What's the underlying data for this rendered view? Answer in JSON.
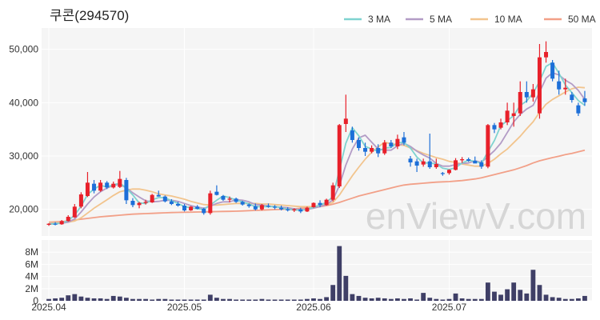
{
  "title": "쿠콘(294570)",
  "watermark": "enViewV.com",
  "chart_data": {
    "type": "candlestick",
    "price_axis": {
      "ylim": [
        15000,
        54000
      ],
      "ticks": [
        20000,
        30000,
        40000,
        50000
      ],
      "tick_labels": [
        "20,000",
        "30,000",
        "40,000",
        "50,000"
      ]
    },
    "volume_axis": {
      "ylim": [
        0,
        10
      ],
      "unit": "M",
      "ticks": [
        0,
        2,
        4,
        6,
        8
      ],
      "tick_labels": [
        "0",
        "2M",
        "4M",
        "6M",
        "8M"
      ]
    },
    "x_tick_labels": [
      {
        "index": 0,
        "label": "2025.04"
      },
      {
        "index": 21,
        "label": "2025.05"
      },
      {
        "index": 41,
        "label": "2025.06"
      },
      {
        "index": 62,
        "label": "2025.07"
      }
    ],
    "legend": [
      {
        "label": "3 MA",
        "color": "#7fd3d0"
      },
      {
        "label": "5 MA",
        "color": "#b39cc6"
      },
      {
        "label": "10 MA",
        "color": "#f2c48d"
      },
      {
        "label": "50 MA",
        "color": "#f2a088"
      }
    ],
    "colors": {
      "up": "#e8202a",
      "down": "#1d6fd8",
      "volume": "#3f3f66",
      "grid": "#ffffff",
      "plot_bg": "#f5f5f5"
    },
    "candles": [
      [
        17100,
        17400,
        16900,
        17300
      ],
      [
        17300,
        17600,
        17000,
        17200
      ],
      [
        17200,
        18000,
        17100,
        17800
      ],
      [
        17800,
        18900,
        17700,
        18600
      ],
      [
        18500,
        21000,
        18400,
        20500
      ],
      [
        20500,
        23200,
        20200,
        22800
      ],
      [
        22500,
        27000,
        22300,
        25000
      ],
      [
        24800,
        25500,
        23000,
        23500
      ],
      [
        23500,
        25500,
        23300,
        25000
      ],
      [
        25000,
        25300,
        23800,
        24100
      ],
      [
        24100,
        25200,
        23900,
        24800
      ],
      [
        24200,
        27200,
        24000,
        25700
      ],
      [
        25500,
        25900,
        21000,
        21700
      ],
      [
        21600,
        22100,
        20400,
        20800
      ],
      [
        20800,
        21400,
        20200,
        21200
      ],
      [
        21200,
        21800,
        20900,
        21400
      ],
      [
        21300,
        22900,
        21200,
        22700
      ],
      [
        22700,
        23500,
        22400,
        22400
      ],
      [
        22400,
        22600,
        21300,
        21500
      ],
      [
        21500,
        21900,
        20800,
        21000
      ],
      [
        21000,
        21400,
        20500,
        20700
      ],
      [
        20700,
        21000,
        19600,
        19800
      ],
      [
        19800,
        20600,
        19700,
        20500
      ],
      [
        20500,
        20800,
        20000,
        20100
      ],
      [
        20100,
        20300,
        19000,
        19300
      ],
      [
        19300,
        23500,
        19000,
        23000
      ],
      [
        23300,
        24500,
        22600,
        22700
      ],
      [
        22500,
        22700,
        21600,
        21800
      ],
      [
        21800,
        22400,
        21300,
        22000
      ],
      [
        22000,
        22200,
        21200,
        21400
      ],
      [
        21400,
        21600,
        20700,
        20900
      ],
      [
        20900,
        21100,
        20300,
        20600
      ],
      [
        20600,
        21100,
        19800,
        20000
      ],
      [
        20000,
        21000,
        19800,
        20800
      ],
      [
        20700,
        21100,
        20300,
        20500
      ],
      [
        20500,
        20800,
        20000,
        20300
      ],
      [
        20300,
        20700,
        19800,
        20000
      ],
      [
        20000,
        20400,
        19600,
        19800
      ],
      [
        19800,
        20200,
        19500,
        20000
      ],
      [
        20000,
        20300,
        19300,
        19600
      ],
      [
        19600,
        20500,
        19500,
        20300
      ],
      [
        20400,
        21300,
        20300,
        21200
      ],
      [
        21200,
        21700,
        20400,
        20800
      ],
      [
        20800,
        22000,
        20700,
        21800
      ],
      [
        21800,
        25000,
        21500,
        24500
      ],
      [
        24300,
        36000,
        24000,
        35800
      ],
      [
        36000,
        41500,
        34500,
        37000
      ],
      [
        34800,
        35500,
        32500,
        33000
      ],
      [
        33000,
        33500,
        31000,
        31500
      ],
      [
        31500,
        32500,
        30000,
        30800
      ],
      [
        30800,
        32000,
        30500,
        31500
      ],
      [
        31500,
        32200,
        29800,
        30500
      ],
      [
        30500,
        33000,
        30200,
        32500
      ],
      [
        32500,
        33000,
        31500,
        31800
      ],
      [
        31800,
        34000,
        31300,
        33200
      ],
      [
        33500,
        34500,
        32000,
        32500
      ],
      [
        29500,
        30000,
        28000,
        28800
      ],
      [
        29000,
        29500,
        27000,
        28200
      ],
      [
        28400,
        29500,
        28000,
        29000
      ],
      [
        29000,
        34200,
        27600,
        27900
      ],
      [
        27900,
        29500,
        27600,
        28500
      ],
      [
        26800,
        27000,
        26300,
        26700
      ],
      [
        26800,
        27500,
        26500,
        27400
      ],
      [
        27400,
        29600,
        27300,
        29200
      ],
      [
        29200,
        29800,
        28700,
        29400
      ],
      [
        29400,
        29700,
        28900,
        29100
      ],
      [
        29100,
        29900,
        28800,
        28600
      ],
      [
        28800,
        29200,
        27600,
        28000
      ],
      [
        28000,
        36000,
        27700,
        35800
      ],
      [
        35800,
        36200,
        34300,
        35000
      ],
      [
        35300,
        37000,
        35000,
        36300
      ],
      [
        36300,
        40000,
        35800,
        38500
      ],
      [
        37500,
        40000,
        35500,
        38000
      ],
      [
        38000,
        44000,
        37500,
        42000
      ],
      [
        42000,
        44000,
        40000,
        41000
      ],
      [
        41000,
        43500,
        40200,
        42500
      ],
      [
        38000,
        51000,
        37000,
        48500
      ],
      [
        48500,
        51500,
        47500,
        49500
      ],
      [
        47500,
        48000,
        44000,
        44500
      ],
      [
        44000,
        46000,
        41500,
        42500
      ],
      [
        42500,
        44500,
        41500,
        42800
      ],
      [
        41500,
        42000,
        40000,
        40500
      ],
      [
        39500,
        40000,
        37500,
        38000
      ],
      [
        40800,
        42200,
        39400,
        40100
      ]
    ],
    "ma3": [
      17200,
      17300,
      17400,
      17900,
      18900,
      20600,
      22800,
      23800,
      24500,
      24200,
      24600,
      24900,
      24000,
      22700,
      21200,
      21100,
      21800,
      22200,
      22200,
      21600,
      21100,
      20500,
      20300,
      20100,
      20000,
      20800,
      21700,
      22500,
      22200,
      21700,
      21400,
      21000,
      20500,
      20500,
      20500,
      20500,
      20300,
      20000,
      19900,
      19800,
      20000,
      20400,
      20800,
      21300,
      22400,
      27400,
      32400,
      35300,
      33800,
      31800,
      31300,
      30900,
      31500,
      31600,
      32500,
      32500,
      31500,
      29800,
      28700,
      28700,
      28500,
      27700,
      27500,
      27800,
      28700,
      29200,
      29000,
      28600,
      30800,
      32900,
      35700,
      36600,
      37600,
      39500,
      40300,
      41800,
      44000,
      46800,
      47500,
      45500,
      43300,
      41900,
      40400,
      39500
    ],
    "ma5": [
      17300,
      17350,
      17400,
      17600,
      18200,
      19500,
      21000,
      22300,
      23300,
      24000,
      24500,
      24700,
      24000,
      23100,
      22300,
      21600,
      21400,
      21500,
      21700,
      21700,
      21500,
      21100,
      20700,
      20400,
      20200,
      20600,
      21100,
      21400,
      21400,
      21800,
      21700,
      21400,
      20900,
      20800,
      20600,
      20500,
      20400,
      20300,
      20100,
      19900,
      20000,
      20200,
      20500,
      20900,
      21800,
      24500,
      28300,
      31300,
      33400,
      33900,
      32600,
      31300,
      31100,
      31100,
      31900,
      32400,
      31800,
      30900,
      30200,
      29600,
      28600,
      28100,
      28100,
      28400,
      28600,
      28700,
      29100,
      28800,
      29900,
      31000,
      32400,
      34400,
      36400,
      37800,
      38800,
      39500,
      42000,
      44600,
      45600,
      45200,
      44200,
      43500,
      42300,
      40600
    ],
    "ma10": [
      17500,
      17500,
      17500,
      17600,
      17800,
      18400,
      19300,
      20200,
      21000,
      21800,
      22600,
      23300,
      23600,
      23800,
      23800,
      23600,
      23300,
      22900,
      22700,
      22500,
      22200,
      21900,
      21500,
      21200,
      20900,
      20800,
      20800,
      20900,
      21000,
      21100,
      21100,
      21100,
      21100,
      21000,
      21000,
      20900,
      20800,
      20700,
      20600,
      20500,
      20500,
      20500,
      20700,
      20900,
      21300,
      22700,
      24500,
      26300,
      27900,
      29400,
      30700,
      31700,
      32600,
      32300,
      32100,
      32000,
      31500,
      31000,
      30500,
      30100,
      29700,
      29400,
      29000,
      28800,
      28500,
      28300,
      28100,
      28100,
      28600,
      29400,
      30400,
      31300,
      32500,
      33700,
      35100,
      36400,
      38200,
      39700,
      40600,
      41300,
      42000,
      42600,
      42900,
      42800
    ],
    "ma50": [
      17600,
      17650,
      17700,
      17800,
      18000,
      18150,
      18300,
      18450,
      18600,
      18700,
      18800,
      18900,
      19000,
      19100,
      19150,
      19200,
      19250,
      19300,
      19350,
      19400,
      19420,
      19450,
      19470,
      19500,
      19520,
      19550,
      19570,
      19600,
      19620,
      19650,
      19700,
      19750,
      19800,
      19850,
      19900,
      19950,
      20000,
      20050,
      20100,
      20200,
      20300,
      20400,
      20500,
      20700,
      20950,
      21300,
      21700,
      22100,
      22500,
      22800,
      23100,
      23400,
      23700,
      24000,
      24300,
      24550,
      24700,
      24800,
      24900,
      25000,
      25100,
      25150,
      25200,
      25300,
      25400,
      25550,
      25700,
      25900,
      26200,
      26500,
      26800,
      27100,
      27400,
      27800,
      28200,
      28700,
      29100,
      29400,
      29700,
      29950,
      30250,
      30500,
      30800,
      31100
    ],
    "volumes_m": [
      0.3,
      0.4,
      0.5,
      0.9,
      1.1,
      0.7,
      0.5,
      0.4,
      0.4,
      0.3,
      0.8,
      0.7,
      0.5,
      0.3,
      0.3,
      0.3,
      0.2,
      0.3,
      0.3,
      0.2,
      0.2,
      0.2,
      0.2,
      0.2,
      0.2,
      1.0,
      0.5,
      0.3,
      0.3,
      0.2,
      0.2,
      0.2,
      0.2,
      0.3,
      0.2,
      0.2,
      0.2,
      0.2,
      0.2,
      0.2,
      0.3,
      0.4,
      0.3,
      0.6,
      2.6,
      9.0,
      4.1,
      1.1,
      0.8,
      0.5,
      0.4,
      0.5,
      0.4,
      0.3,
      0.4,
      0.3,
      0.4,
      0.2,
      1.3,
      0.5,
      0.3,
      0.2,
      0.3,
      1.2,
      0.4,
      0.3,
      0.3,
      0.3,
      3.0,
      1.5,
      1.0,
      1.9,
      3.0,
      1.8,
      1.2,
      5.1,
      2.6,
      1.0,
      0.6,
      0.5,
      0.3,
      0.3,
      0.4,
      0.8
    ]
  }
}
